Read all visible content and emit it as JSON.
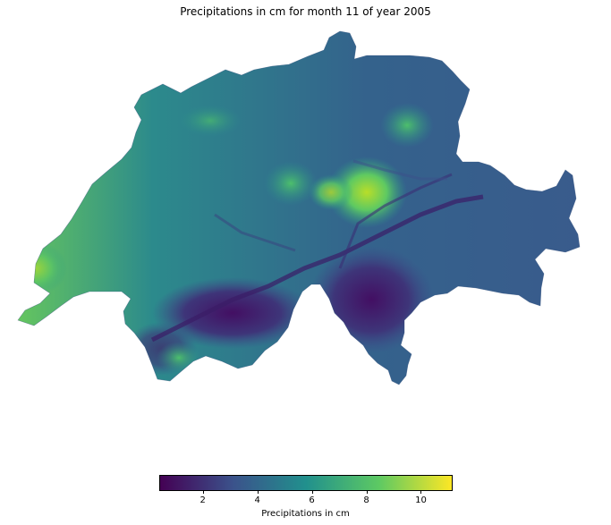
{
  "title": "Precipitations in cm for month 11 of year 2005",
  "colorbar": {
    "label": "Precipitations in cm",
    "min": 0.4,
    "max": 11.1,
    "ticks": [
      {
        "value": 2,
        "label": "2"
      },
      {
        "value": 4,
        "label": "4"
      },
      {
        "value": 6,
        "label": "6"
      },
      {
        "value": 8,
        "label": "8"
      },
      {
        "value": 10,
        "label": "10"
      }
    ],
    "colormap": "viridis",
    "colors": [
      "#440154",
      "#3b528b",
      "#21908d",
      "#5dc963",
      "#fde725"
    ]
  },
  "map": {
    "region": "Switzerland",
    "base_color": "#3e5f8a",
    "low_color": "#3b2a6e",
    "high_color": "#a8db34"
  }
}
